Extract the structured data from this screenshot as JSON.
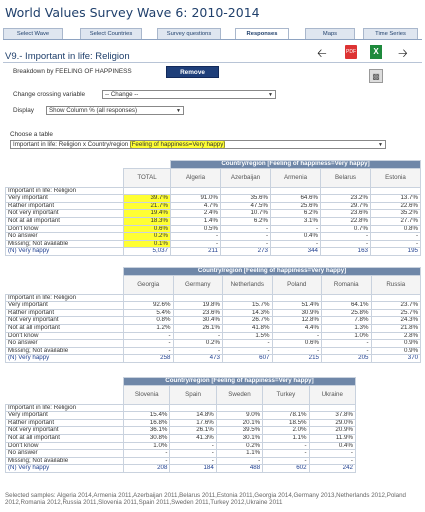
{
  "app": {
    "title": "World Values Survey Wave 6: 2010-2014"
  },
  "tabs": [
    "Select Wave",
    "Select Countries",
    "Survey questions",
    "Responses",
    "Maps",
    "Time Series"
  ],
  "active_tab": "Responses",
  "variable_title": "V9.- Important in life: Religion",
  "toolbar": {
    "pdf_label": "PDF",
    "xls_label": "X"
  },
  "breakdown": {
    "label": "Breakdown by FEELING OF HAPPINESS",
    "remove_label": "Remove"
  },
  "crossing": {
    "label": "Change crossing variable",
    "value": "-- Change --"
  },
  "display": {
    "label": "Display",
    "value": "Show Column % (all responses)"
  },
  "table_chooser": {
    "label": "Choose a table",
    "value_prefix": "Important in life: Religion x Country/region ",
    "value_highlight": "[Feeling of happiness=Very happy]"
  },
  "row_labels": {
    "section": "Important in life: Religion",
    "rows": [
      "Very important",
      "Rather important",
      "Not very important",
      "Not at all important",
      "Don't know",
      "No answer",
      "Missing; Not available"
    ],
    "n": "(N) Very happy"
  },
  "table1": {
    "group_header": "Country/region [Feeling of happiness=Very happy]",
    "total_header": "TOTAL",
    "columns": [
      "Algeria",
      "Azerbaijan",
      "Armenia",
      "Belarus",
      "Estonia"
    ],
    "total": [
      "39.7%",
      "21.7%",
      "19.4%",
      "18.3%",
      "0.6%",
      "0.2%",
      "0.1%",
      "5,037"
    ],
    "cells": [
      [
        "91.0%",
        "35.6%",
        "64.6%",
        "23.2%",
        "13.7%"
      ],
      [
        "4.7%",
        "47.5%",
        "25.6%",
        "29.7%",
        "22.6%"
      ],
      [
        "2.4%",
        "10.7%",
        "6.2%",
        "23.6%",
        "35.2%"
      ],
      [
        "1.4%",
        "6.2%",
        "3.1%",
        "22.8%",
        "27.7%"
      ],
      [
        "0.5%",
        "-",
        "-",
        "0.7%",
        "0.8%"
      ],
      [
        "-",
        "-",
        "0.4%",
        "-",
        "-"
      ],
      [
        "-",
        "-",
        "-",
        "-",
        "-"
      ],
      [
        "211",
        "273",
        "344",
        "163",
        "195"
      ]
    ]
  },
  "table2": {
    "group_header": "Country/region [Feeling of happiness=Very happy]",
    "columns": [
      "Georgia",
      "Germany",
      "Netherlands",
      "Poland",
      "Romania",
      "Russia"
    ],
    "cells": [
      [
        "92.6%",
        "19.8%",
        "15.7%",
        "51.4%",
        "64.1%",
        "23.7%"
      ],
      [
        "5.4%",
        "23.6%",
        "14.3%",
        "30.9%",
        "25.8%",
        "25.7%"
      ],
      [
        "0.8%",
        "30.4%",
        "26.7%",
        "12.8%",
        "7.8%",
        "24.3%"
      ],
      [
        "1.2%",
        "26.1%",
        "41.8%",
        "4.4%",
        "1.3%",
        "21.8%"
      ],
      [
        "-",
        "-",
        "1.5%",
        "-",
        "1.0%",
        "2.8%"
      ],
      [
        "-",
        "0.2%",
        "-",
        "0.6%",
        "-",
        "0.9%"
      ],
      [
        "-",
        "-",
        "-",
        "-",
        "-",
        "0.9%"
      ],
      [
        "258",
        "473",
        "607",
        "215",
        "205",
        "370"
      ]
    ]
  },
  "table3": {
    "group_header": "Country/region [Feeling of happiness=Very happy]",
    "columns": [
      "Slovenia",
      "Spain",
      "Sweden",
      "Turkey",
      "Ukraine"
    ],
    "cells": [
      [
        "15.4%",
        "14.8%",
        "9.0%",
        "78.1%",
        "37.8%"
      ],
      [
        "16.8%",
        "17.6%",
        "20.1%",
        "18.5%",
        "29.0%"
      ],
      [
        "36.1%",
        "26.1%",
        "39.5%",
        "2.0%",
        "20.9%"
      ],
      [
        "30.8%",
        "41.3%",
        "30.1%",
        "1.1%",
        "11.9%"
      ],
      [
        "1.0%",
        "-",
        "0.2%",
        "-",
        "0.4%"
      ],
      [
        "-",
        "-",
        "1.1%",
        "-",
        "-"
      ],
      [
        "-",
        "-",
        "-",
        "-",
        "-"
      ],
      [
        "208",
        "184",
        "488",
        "602",
        "242"
      ]
    ]
  },
  "footer": "Selected samples: Algeria 2014,Armenia 2011,Azerbaijan 2011,Belarus 2011,Estonia 2011,Georgia 2014,Germany 2013,Netherlands 2012,Poland 2012,Romania 2012,Russia 2011,Slovenia 2011,Spain 2011,Sweden 2011,Turkey 2012,Ukraine 2011",
  "colors": {
    "header_blue": "#6f87a8",
    "highlight": "#ffff33",
    "remove_button": "#1f3f7a"
  }
}
